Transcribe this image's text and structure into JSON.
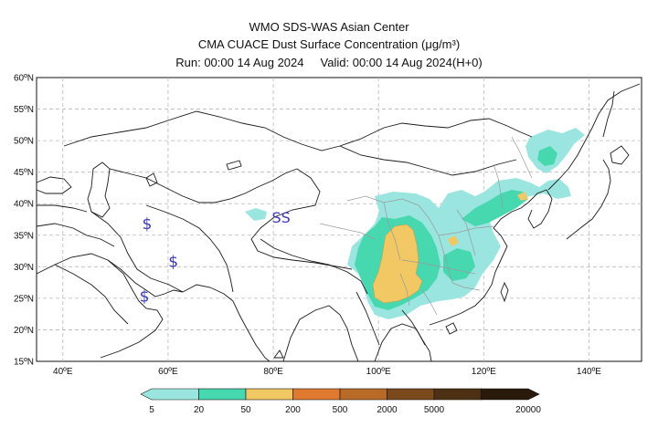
{
  "header": {
    "line1": "WMO SDS-WAS Asian Center",
    "line2": "CMA CUACE Dust Surface Concentration (μg/m³)",
    "line3_run": "Run: 00:00 14 Aug 2024",
    "line3_valid": "Valid: 00:00 14 Aug 2024(H+0)"
  },
  "map": {
    "lon_range": [
      35,
      150
    ],
    "lat_range": [
      15,
      60
    ],
    "lat_ticks": [
      "15ºN",
      "20ºN",
      "25ºN",
      "30ºN",
      "35ºN",
      "40ºN",
      "45ºN",
      "50ºN",
      "55ºN",
      "60ºN"
    ],
    "lon_ticks": [
      "40ºE",
      "60ºE",
      "80ºE",
      "100ºE",
      "120ºE",
      "140ºE"
    ],
    "grid": true,
    "markers": [
      {
        "label": "$",
        "lon": 56,
        "lat": 36
      },
      {
        "label": "$",
        "lon": 61,
        "lat": 30
      },
      {
        "label": "$",
        "lon": 55.5,
        "lat": 24.5
      },
      {
        "label": "SS",
        "lon": 81.5,
        "lat": 37
      }
    ]
  },
  "colorbar": {
    "labels": [
      "5",
      "20",
      "50",
      "200",
      "500",
      "2000",
      "5000",
      "20000"
    ],
    "colors": [
      "#9be5e0",
      "#48d8b0",
      "#f2c864",
      "#e07a30",
      "#b86a26",
      "#7a4a1c",
      "#4e3015",
      "#2a1a0c"
    ]
  },
  "colors": {
    "land_line": "#1a1a1a",
    "province_line": "#9a9a9a",
    "grid": "#b8b8b8",
    "dust_low": "#9be5e0",
    "dust_mid": "#48d8b0",
    "dust_high": "#f2c864"
  }
}
